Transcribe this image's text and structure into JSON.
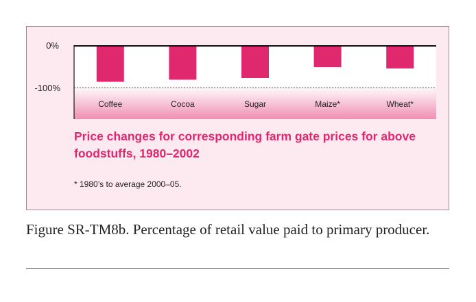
{
  "chart_data": {
    "type": "bar",
    "categories": [
      "Coffee",
      "Cocoa",
      "Sugar",
      "Maize*",
      "Wheat*"
    ],
    "values": [
      -86,
      -81,
      -77,
      -51,
      -54
    ],
    "yticks": [
      "0%",
      "-100%"
    ],
    "ylim": [
      -100,
      0
    ],
    "grid": false,
    "legend": "none",
    "title": "Price changes for corresponding farm gate prices for above foodstuffs, 1980–2002",
    "footnote": "* 1980’s to average 2000–05.",
    "colors": {
      "bar": "#e0286f",
      "reference_line": "#555555"
    }
  },
  "caption": "Figure SR-TM8b. Percentage of retail value paid to primary producer."
}
